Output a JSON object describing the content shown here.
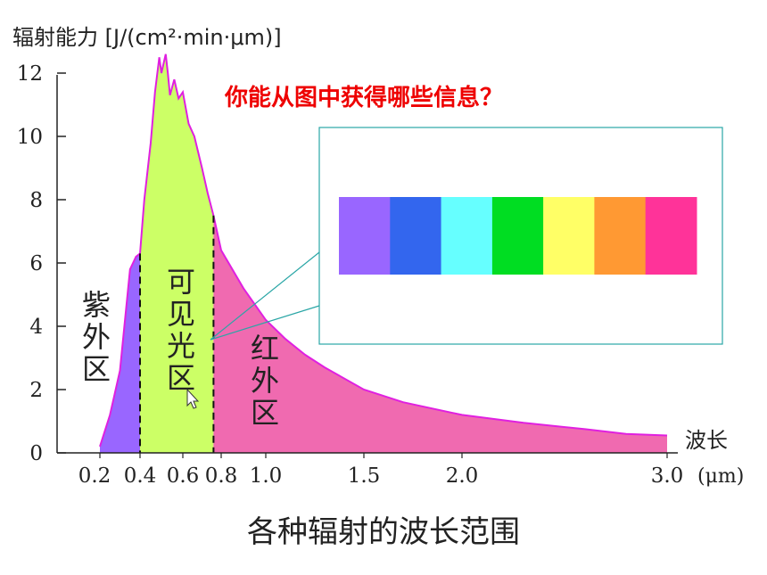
{
  "chart_data": {
    "type": "area",
    "title": "各种辐射的波长范围",
    "ylabel": "辐射能力 [J/(cm²·min·μm)]",
    "xlabel": "波长",
    "x_unit_label": "(μm)",
    "ylim": [
      0,
      12.5
    ],
    "yticks": [
      "0",
      "2",
      "4",
      "6",
      "8",
      "10",
      "12"
    ],
    "xticks": [
      {
        "label": "0.2",
        "value": 0.2
      },
      {
        "label": "0.4",
        "value": 0.4
      },
      {
        "label": "0.6",
        "value": 0.6
      },
      {
        "label": "0.8",
        "value": 0.8
      },
      {
        "label": "1.0",
        "value": 1.0
      },
      {
        "label": "1.5",
        "value": 1.5
      },
      {
        "label": "2.0",
        "value": 2.0
      },
      {
        "label": "3.0",
        "value": 3.0
      }
    ],
    "boundaries": [
      0.4,
      0.76
    ],
    "regions": [
      {
        "label": "紫外区",
        "from": 0.2,
        "to": 0.4,
        "color": "#9966ff"
      },
      {
        "label": "可见光区",
        "from": 0.4,
        "to": 0.76,
        "color": "#ccff66"
      },
      {
        "label": "红外区",
        "from": 0.76,
        "to": 3.0,
        "color": "#f06ab0"
      }
    ],
    "curve": {
      "x": [
        0.2,
        0.25,
        0.3,
        0.35,
        0.38,
        0.4,
        0.42,
        0.45,
        0.47,
        0.49,
        0.5,
        0.51,
        0.52,
        0.53,
        0.54,
        0.56,
        0.58,
        0.6,
        0.63,
        0.66,
        0.7,
        0.73,
        0.76,
        0.8,
        0.9,
        1.0,
        1.1,
        1.2,
        1.3,
        1.5,
        1.7,
        2.0,
        2.3,
        2.6,
        2.8,
        3.0
      ],
      "y": [
        0.2,
        1.2,
        2.6,
        5.8,
        6.2,
        6.3,
        8.0,
        9.8,
        11.4,
        12.5,
        12.0,
        12.3,
        12.6,
        12.0,
        11.3,
        11.8,
        11.2,
        11.4,
        10.4,
        10.0,
        9.0,
        8.2,
        7.5,
        6.4,
        5.2,
        4.2,
        3.6,
        3.1,
        2.7,
        2.0,
        1.6,
        1.2,
        0.95,
        0.75,
        0.6,
        0.55
      ],
      "line_color": "#e020e0"
    },
    "annotation": "你能从图中获得哪些信息？",
    "spectrum_colors": [
      "#9966ff",
      "#3366ee",
      "#66ffff",
      "#00dd22",
      "#ffff66",
      "#ff9933",
      "#ff3399"
    ]
  }
}
